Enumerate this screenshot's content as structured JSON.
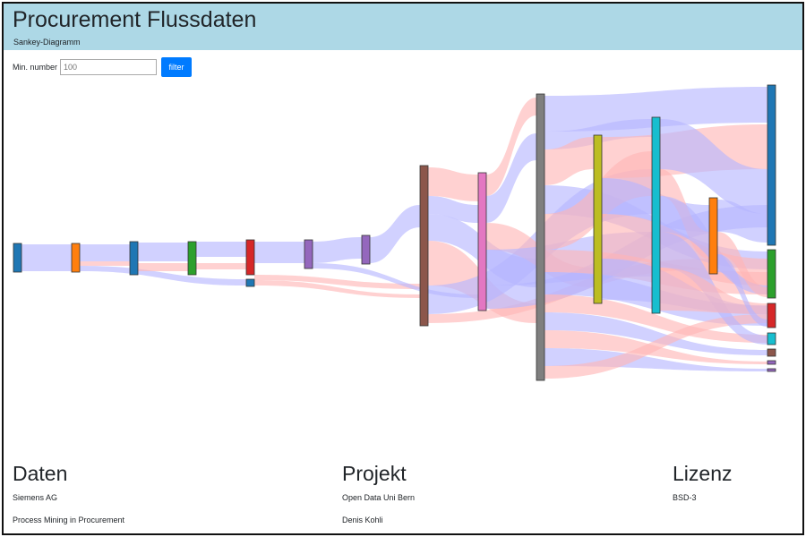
{
  "header": {
    "title": "Procurement Flussdaten",
    "subtitle": "Sankey-Diagramm"
  },
  "filter": {
    "label": "Min. number",
    "placeholder": "100",
    "button_label": "filter"
  },
  "colors": {
    "header_bg": "#add8e6",
    "button_bg": "#007bff",
    "link_blue": "#b4b4ff",
    "link_red": "#ffb4b4",
    "node_palette": [
      "#1f77b4",
      "#ff7f0e",
      "#2ca02c",
      "#d62728",
      "#9467bd",
      "#8c564b",
      "#e377c2",
      "#7f7f7f",
      "#bcbd22",
      "#17becf"
    ]
  },
  "footer": {
    "daten": {
      "heading": "Daten",
      "line1": "Siemens AG",
      "line2": "Process Mining in Procurement"
    },
    "projekt": {
      "heading": "Projekt",
      "line1": "Open Data Uni Bern",
      "line2": "Denis Kohli"
    },
    "lizenz": {
      "heading": "Lizenz",
      "line1": "BSD-3"
    }
  }
}
